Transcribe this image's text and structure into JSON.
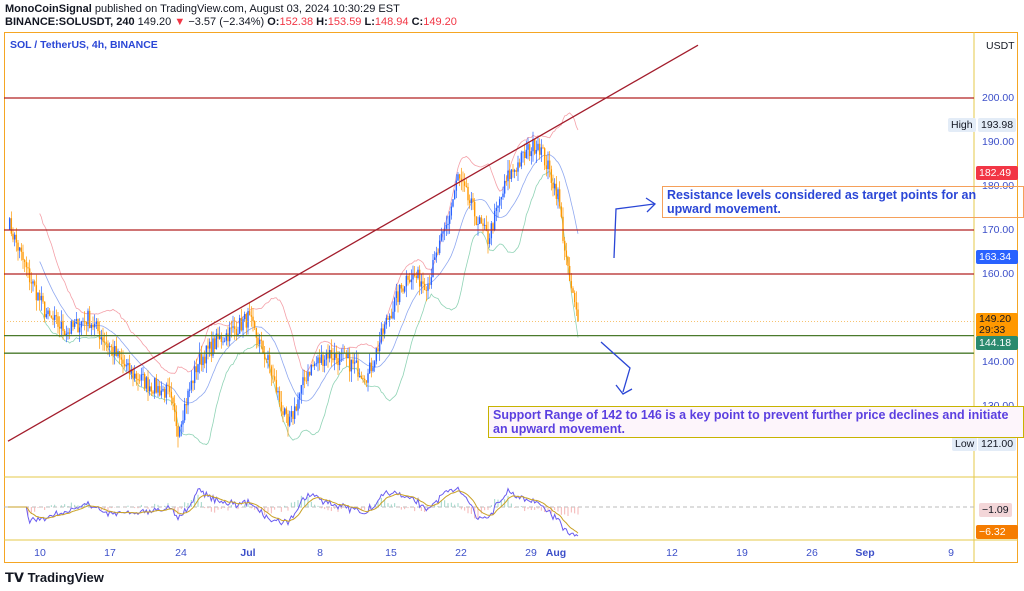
{
  "header": {
    "publisher": "MonoCoinSignal",
    "published": "published on TradingView.com, August 03, 2024 10:30:29 EST",
    "symbol": "BINANCE:SOLUSDT, 240",
    "last": "149.20",
    "change": "−3.57 (−2.34%)",
    "o_label": "O:",
    "o": "152.38",
    "h_label": "H:",
    "h": "153.59",
    "l_label": "L:",
    "l": "148.94",
    "c_label": "C:",
    "c": "149.20"
  },
  "legend": "SOL / TetherUS, 4h, BINANCE",
  "currency": "USDT",
  "price_axis": [
    "200.00",
    "190.00",
    "180.00",
    "170.00",
    "160.00",
    "140.00",
    "130.00"
  ],
  "tags": {
    "high_label": "High",
    "high": "193.98",
    "low_label": "Low",
    "low": "121.00",
    "bb_upper": "182.49",
    "bb_basis": "163.34",
    "last": "149.20",
    "countdown": "29:33",
    "bb_lower": "144.18",
    "osc1": "−1.09",
    "osc2": "−6.32"
  },
  "notes": {
    "resistance": "Resistance levels considered as target points for an upward movement.",
    "support": "Support Range of 142 to 146 is a key point to prevent further price declines and initiate an upward movement."
  },
  "time_axis": [
    "10",
    "17",
    "24",
    "Jul",
    "8",
    "15",
    "22",
    "29",
    "Aug",
    "12",
    "19",
    "26",
    "Sep",
    "9"
  ],
  "brand": "TradingView",
  "colors": {
    "up": "#2962ff",
    "down": "#ff9800",
    "resistance": "#b22222",
    "support": "#4a7a2c",
    "trendline": "#a31d2c",
    "annotation": "#2a46d6"
  },
  "chart_data": {
    "type": "candlestick",
    "timeframe": "4h",
    "ylim": [
      115,
      212
    ],
    "closes_by_date": [
      [
        "2024-06-07",
        172
      ],
      [
        "2024-06-09",
        160
      ],
      [
        "2024-06-11",
        150
      ],
      [
        "2024-06-13",
        147
      ],
      [
        "2024-06-15",
        150
      ],
      [
        "2024-06-17",
        144
      ],
      [
        "2024-06-19",
        138
      ],
      [
        "2024-06-21",
        135
      ],
      [
        "2024-06-23",
        133
      ],
      [
        "2024-06-24",
        125
      ],
      [
        "2024-06-26",
        140
      ],
      [
        "2024-06-28",
        145
      ],
      [
        "2024-06-30",
        148
      ],
      [
        "2024-07-01",
        150
      ],
      [
        "2024-07-03",
        140
      ],
      [
        "2024-07-05",
        125
      ],
      [
        "2024-07-07",
        138
      ],
      [
        "2024-07-09",
        142
      ],
      [
        "2024-07-11",
        140
      ],
      [
        "2024-07-13",
        137
      ],
      [
        "2024-07-15",
        150
      ],
      [
        "2024-07-17",
        160
      ],
      [
        "2024-07-19",
        158
      ],
      [
        "2024-07-21",
        172
      ],
      [
        "2024-07-22",
        182
      ],
      [
        "2024-07-24",
        172
      ],
      [
        "2024-07-25",
        168
      ],
      [
        "2024-07-27",
        182
      ],
      [
        "2024-07-29",
        188
      ],
      [
        "2024-07-30",
        190
      ],
      [
        "2024-08-01",
        178
      ],
      [
        "2024-08-02",
        160
      ],
      [
        "2024-08-03",
        149.2
      ]
    ],
    "horizontal_levels": {
      "resistance": [
        200,
        170,
        160
      ],
      "support": [
        146,
        142
      ]
    },
    "trendline": [
      [
        "2024-06-07",
        122
      ],
      [
        "2024-08-15",
        212
      ]
    ]
  }
}
